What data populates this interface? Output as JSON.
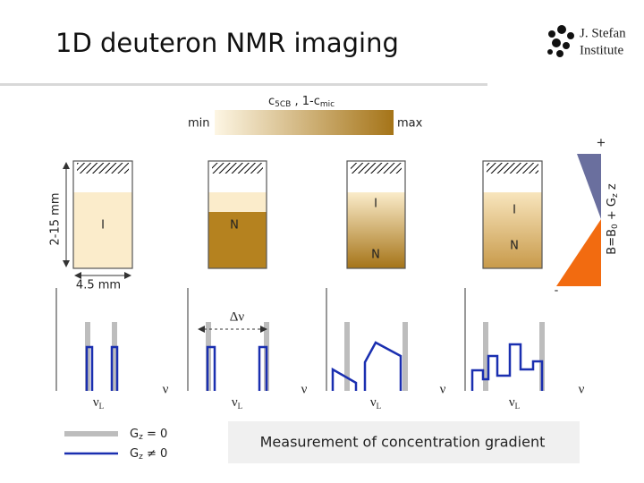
{
  "header": {
    "title": "1D deuteron NMR imaging",
    "institute": [
      "J. Stefan",
      "Institute"
    ]
  },
  "gradient_bar": {
    "label": [
      "c",
      "5CB",
      " , 1-c",
      "mic"
    ],
    "min": "min",
    "max": "max"
  },
  "field": {
    "plus": "+",
    "minus": "-",
    "label": [
      "B=B",
      "0",
      " + G",
      "z",
      " z"
    ]
  },
  "sample": {
    "height": "2-15 mm",
    "width": "4.5 mm"
  },
  "cells": [
    [
      "I"
    ],
    [
      "N"
    ],
    [
      "I",
      "N"
    ],
    [
      "I",
      "N"
    ]
  ],
  "spectra": [
    {
      "center": "ν",
      "center_sub": "L",
      "axis": "ν"
    },
    {
      "delta": "Δν",
      "center": "ν",
      "center_sub": "L",
      "axis": "ν"
    },
    {
      "center": "ν",
      "center_sub": "L",
      "axis": "ν"
    },
    {
      "center": "ν",
      "center_sub": "L",
      "axis": "ν"
    }
  ],
  "legend": [
    [
      "G",
      "z",
      " = 0"
    ],
    [
      "G",
      "z",
      " ≠ 0"
    ]
  ],
  "footer": "Measurement of concentration gradient"
}
